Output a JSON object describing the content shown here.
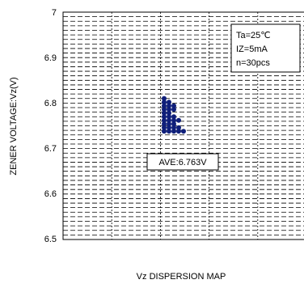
{
  "chart_data": {
    "type": "scatter",
    "title": "",
    "xlabel": "Vz DISPERSION MAP",
    "ylabel": "ZENER VOLTAGE:Vz(V)",
    "ylim": [
      6.5,
      7.0
    ],
    "y_ticks": [
      "7",
      "6.9",
      "6.8",
      "6.7",
      "6.6",
      "6.5"
    ],
    "y_tick_values": [
      7.0,
      6.9,
      6.8,
      6.7,
      6.6,
      6.5
    ],
    "grid": true,
    "conditions": [
      "Ta=25℃",
      "IZ=5mA",
      "n=30pcs"
    ],
    "average_label": "AVE:6.763V",
    "series": [
      {
        "color": "#0f1f7a",
        "columns": [
          {
            "values": [
              6.81,
              6.802,
              6.794,
              6.786,
              6.778,
              6.77,
              6.762,
              6.754,
              6.746,
              6.738
            ]
          },
          {
            "values": [
              6.802,
              6.794,
              6.786,
              6.778,
              6.77,
              6.762,
              6.754,
              6.746,
              6.738
            ]
          },
          {
            "values": [
              6.794,
              6.786,
              6.77,
              6.762,
              6.754,
              6.746,
              6.738
            ]
          },
          {
            "values": [
              6.762,
              6.746,
              6.738
            ]
          },
          {
            "values": [
              6.738
            ]
          }
        ]
      }
    ]
  }
}
